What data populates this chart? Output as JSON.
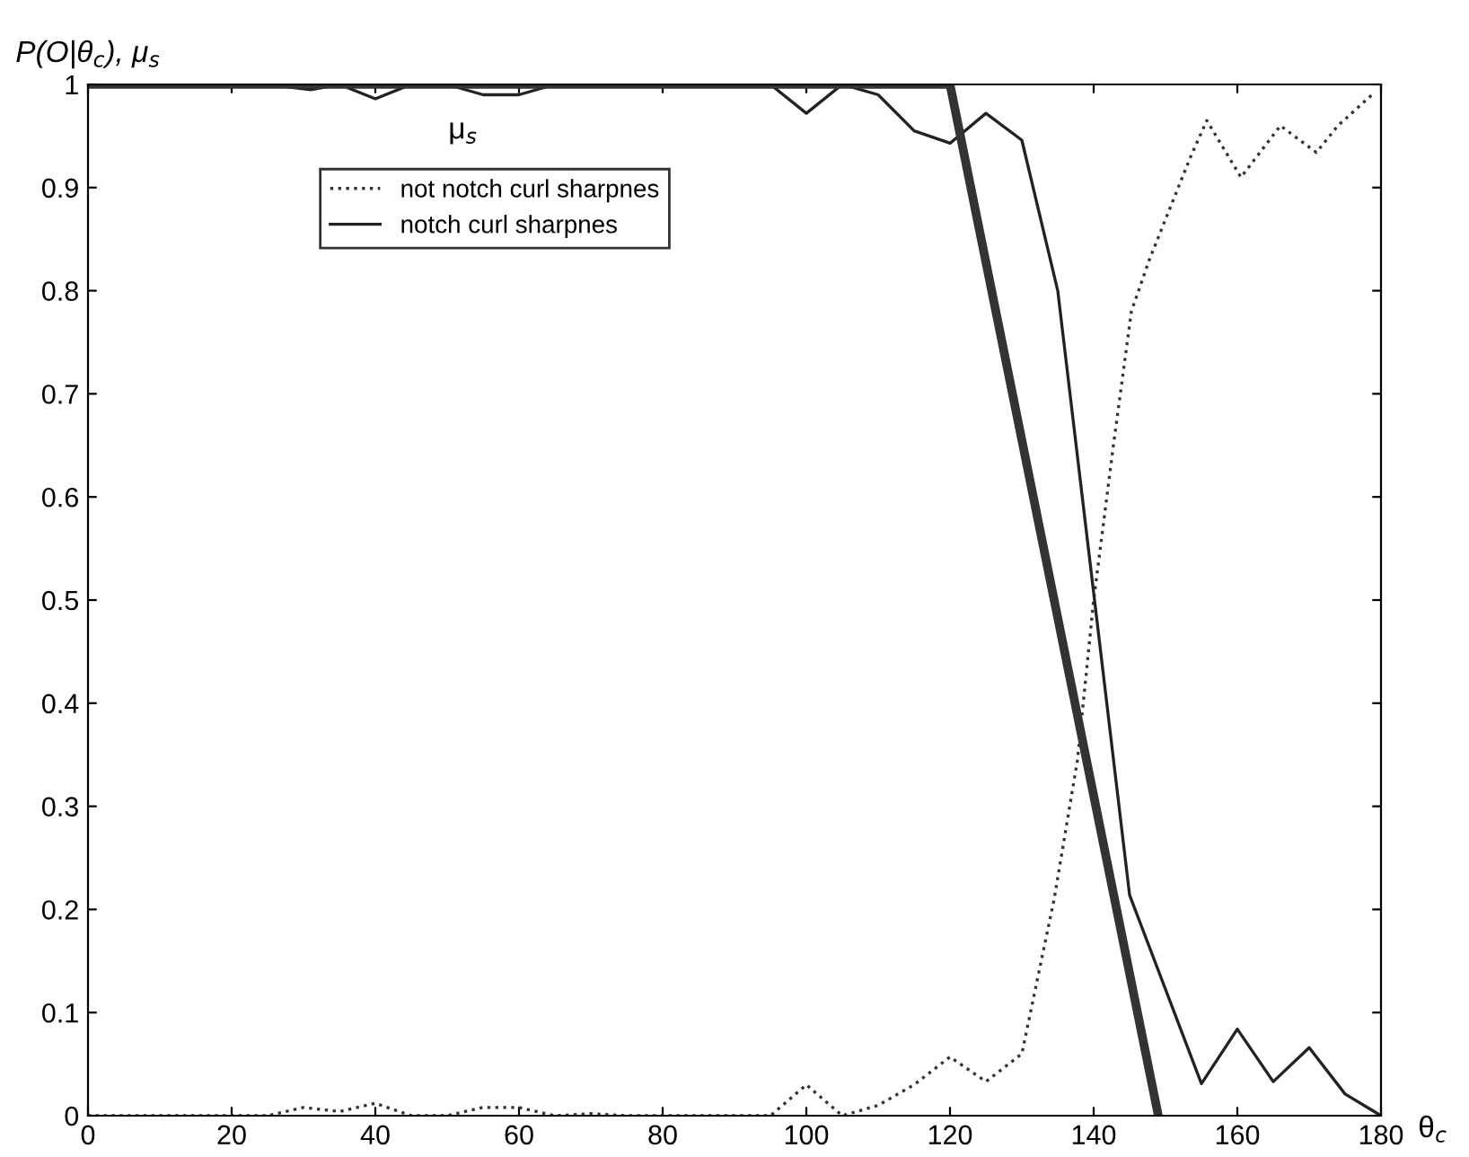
{
  "chart_data": {
    "type": "line",
    "ylabel": "P(O|θ$_{c}$), μ$_{s}$",
    "xlabel": "θ$_{c}$",
    "xlim": [
      0,
      180
    ],
    "xticks": [
      0,
      20,
      40,
      60,
      80,
      100,
      120,
      140,
      160,
      180
    ],
    "ylim": [
      0,
      1
    ],
    "yticks": [
      0,
      0.1,
      0.2,
      0.3,
      0.4,
      0.5,
      0.6,
      0.7,
      0.8,
      0.9,
      1
    ],
    "grid": false,
    "legend": "top left",
    "annotations": [
      "μ$_{s}$"
    ],
    "series": [
      {
        "name": "not notch curl sharpnes",
        "color": "#333333",
        "line_style": "dotted",
        "x": [
          0,
          15,
          25,
          30,
          35,
          40,
          45,
          50,
          55,
          60,
          65,
          70,
          75,
          95,
          100,
          105,
          110,
          115,
          120,
          125,
          130,
          134.5,
          137.75,
          140,
          142.75,
          145.25,
          147.75,
          153.5,
          155.75,
          160.5,
          166,
          171,
          174,
          178.75
        ],
        "values": [
          0,
          0,
          0,
          0.008,
          0.004,
          0.012,
          0,
          0,
          0.008,
          0.008,
          0,
          0.002,
          0,
          0,
          0.03,
          0,
          0.01,
          0.03,
          0.057,
          0.033,
          0.06,
          0.21,
          0.345,
          0.5,
          0.65,
          0.78,
          0.83,
          0.93,
          0.965,
          0.91,
          0.96,
          0.934,
          0.96,
          0.99
        ]
      },
      {
        "name": "notch curl sharpnes",
        "color": "#222222",
        "line_style": "solid",
        "x": [
          0,
          25,
          31,
          35,
          40,
          45,
          50,
          55,
          60,
          65,
          95,
          100,
          105,
          110,
          115,
          120,
          125,
          130,
          135,
          145,
          155,
          160,
          165,
          170,
          175,
          180
        ],
        "values": [
          1,
          1,
          0.995,
          1,
          0.986,
          1,
          1,
          0.99,
          0.99,
          1,
          1,
          0.972,
          1,
          0.99,
          0.955,
          0.943,
          0.972,
          0.946,
          0.8,
          0.214,
          0.031,
          0.084,
          0.033,
          0.066,
          0.021,
          0
        ]
      },
      {
        "color": "#333333",
        "line_style": "solid",
        "x": [
          0,
          120,
          149
        ],
        "values": [
          1,
          1,
          0
        ]
      }
    ]
  }
}
